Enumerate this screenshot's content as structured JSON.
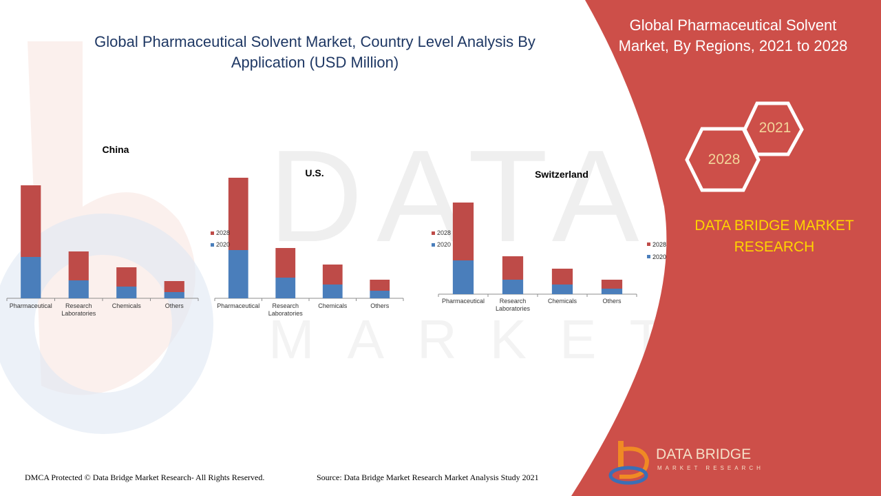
{
  "header": {
    "title": "Global Pharmaceutical Solvent Market, Country Level Analysis By Application (USD Million)"
  },
  "side_panel": {
    "title": "Global Pharmaceutical Solvent Market, By Regions,  2021 to 2028",
    "hex_top": "2021",
    "hex_bottom": "2028",
    "brand": "DATA BRIDGE MARKET RESEARCH",
    "legend": {
      "series_2028": "2028",
      "series_2020": "2020"
    },
    "logo_main": "DATA BRIDGE",
    "logo_sub": "MARKET RESEARCH"
  },
  "footer": {
    "left": "DMCA Protected © Data Bridge Market Research- All Rights Reserved.",
    "right": "Source: Data Bridge Market Research Market Analysis Study 2021"
  },
  "colors": {
    "series_2020": "#4a7ebb",
    "series_2028": "#be4b48",
    "panel_red": "#cd4f49",
    "title_blue": "#1f3864",
    "brand_yellow": "#ffd500"
  },
  "chart_data": [
    {
      "type": "bar",
      "title": "China",
      "stacked": true,
      "categories": [
        "Pharmaceutical",
        "Research Laboratories",
        "Chemicals",
        "Others"
      ],
      "series": [
        {
          "name": "2020",
          "values": [
            60,
            26,
            17,
            9
          ]
        },
        {
          "name": "2028",
          "values": [
            104,
            42,
            28,
            16
          ]
        }
      ],
      "ylim": [
        0,
        170
      ],
      "legend": "none"
    },
    {
      "type": "bar",
      "title": "U.S.",
      "stacked": true,
      "categories": [
        "Pharmaceutical",
        "Research Laboratories",
        "Chemicals",
        "Others"
      ],
      "series": [
        {
          "name": "2020",
          "values": [
            70,
            30,
            20,
            11
          ]
        },
        {
          "name": "2028",
          "values": [
            105,
            43,
            29,
            16
          ]
        }
      ],
      "ylim": [
        0,
        180
      ],
      "legend": "left"
    },
    {
      "type": "bar",
      "title": "Switzerland",
      "stacked": true,
      "categories": [
        "Pharmaceutical",
        "Research Laboratories",
        "Chemicals",
        "Others"
      ],
      "series": [
        {
          "name": "2020",
          "values": [
            49,
            21,
            14,
            8
          ]
        },
        {
          "name": "2028",
          "values": [
            84,
            34,
            23,
            13
          ]
        }
      ],
      "ylim": [
        0,
        140
      ],
      "legend": "left"
    }
  ]
}
